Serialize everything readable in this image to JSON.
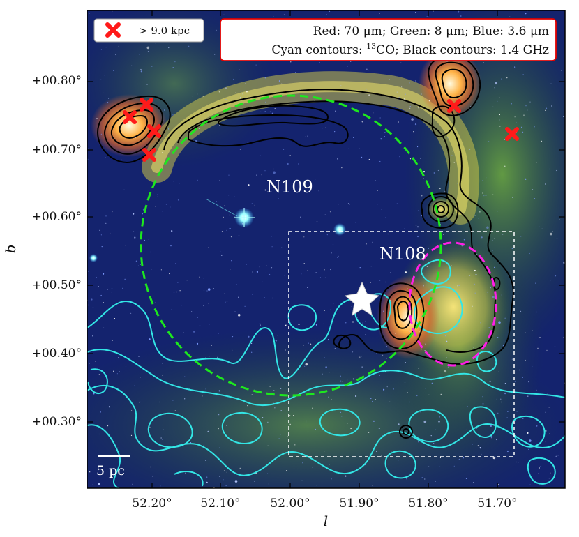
{
  "figure": {
    "x_ticks": [
      "52.20°",
      "52.10°",
      "52.00°",
      "51.90°",
      "51.80°",
      "51.70°"
    ],
    "y_ticks": [
      "+00.80°",
      "+00.70°",
      "+00.60°",
      "+00.50°",
      "+00.40°",
      "+00.30°"
    ],
    "x_label": "l",
    "y_label": "b",
    "legend": {
      "label": "> 9.0 kpc",
      "marker": "red-x"
    },
    "info_box": {
      "line1": "Red: 70 μm; Green: 8 μm; Blue: 3.6 μm",
      "line2_pre": "Cyan contours: ",
      "line2_sup": "13",
      "line2_post": "CO; Black contours: 1.4 GHz"
    },
    "regions": [
      "N109",
      "N108"
    ],
    "scale_bar": "5 pc",
    "colors": {
      "bubble_n109": "#1ee81e",
      "bubble_n108": "#ff1ee6",
      "co_contours": "#33e6e6",
      "radio_contours": "#000000",
      "markers": "#ff1a1a",
      "info_border": "#e00000"
    }
  }
}
